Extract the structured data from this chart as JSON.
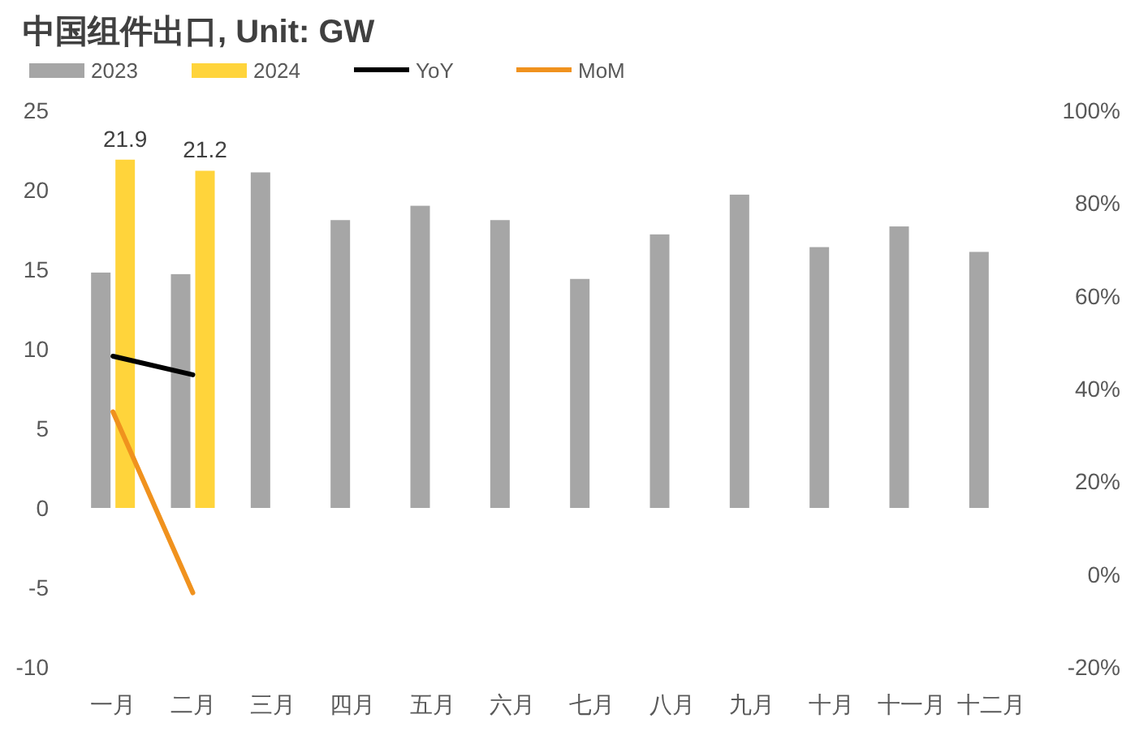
{
  "chart_data": {
    "type": "bar",
    "title": "中国组件出口, Unit: GW",
    "categories": [
      "一月",
      "二月",
      "三月",
      "四月",
      "五月",
      "六月",
      "七月",
      "八月",
      "九月",
      "十月",
      "十一月",
      "十二月"
    ],
    "series": [
      {
        "name": "2023",
        "color": "#a6a6a6",
        "values": [
          14.8,
          14.7,
          21.1,
          18.1,
          19.0,
          18.1,
          14.4,
          17.2,
          19.7,
          16.4,
          17.7,
          16.1
        ]
      },
      {
        "name": "2024",
        "color": "#ffd43b",
        "values": [
          21.9,
          21.2,
          null,
          null,
          null,
          null,
          null,
          null,
          null,
          null,
          null,
          null
        ],
        "value_labels": [
          "21.9",
          "21.2",
          null,
          null,
          null,
          null,
          null,
          null,
          null,
          null,
          null,
          null
        ]
      },
      {
        "name": "YoY",
        "type": "line",
        "axis": "y2",
        "color": "#000000",
        "values": [
          47,
          43,
          null,
          null,
          null,
          null,
          null,
          null,
          null,
          null,
          null,
          null
        ]
      },
      {
        "name": "MoM",
        "type": "line",
        "axis": "y2",
        "color": "#f0921e",
        "values": [
          35,
          -4,
          null,
          null,
          null,
          null,
          null,
          null,
          null,
          null,
          null,
          null
        ]
      }
    ],
    "ylim": [
      -10,
      25
    ],
    "yticks": [
      -10,
      -5,
      0,
      5,
      10,
      15,
      20,
      25
    ],
    "y2lim": [
      -20,
      100
    ],
    "y2ticks": [
      {
        "value": -20,
        "label": "-20%"
      },
      {
        "value": 0,
        "label": "0%"
      },
      {
        "value": 20,
        "label": "20%"
      },
      {
        "value": 40,
        "label": "40%"
      },
      {
        "value": 60,
        "label": "60%"
      },
      {
        "value": 80,
        "label": "80%"
      },
      {
        "value": 100,
        "label": "100%"
      }
    ],
    "legend": "top",
    "grid": false
  }
}
